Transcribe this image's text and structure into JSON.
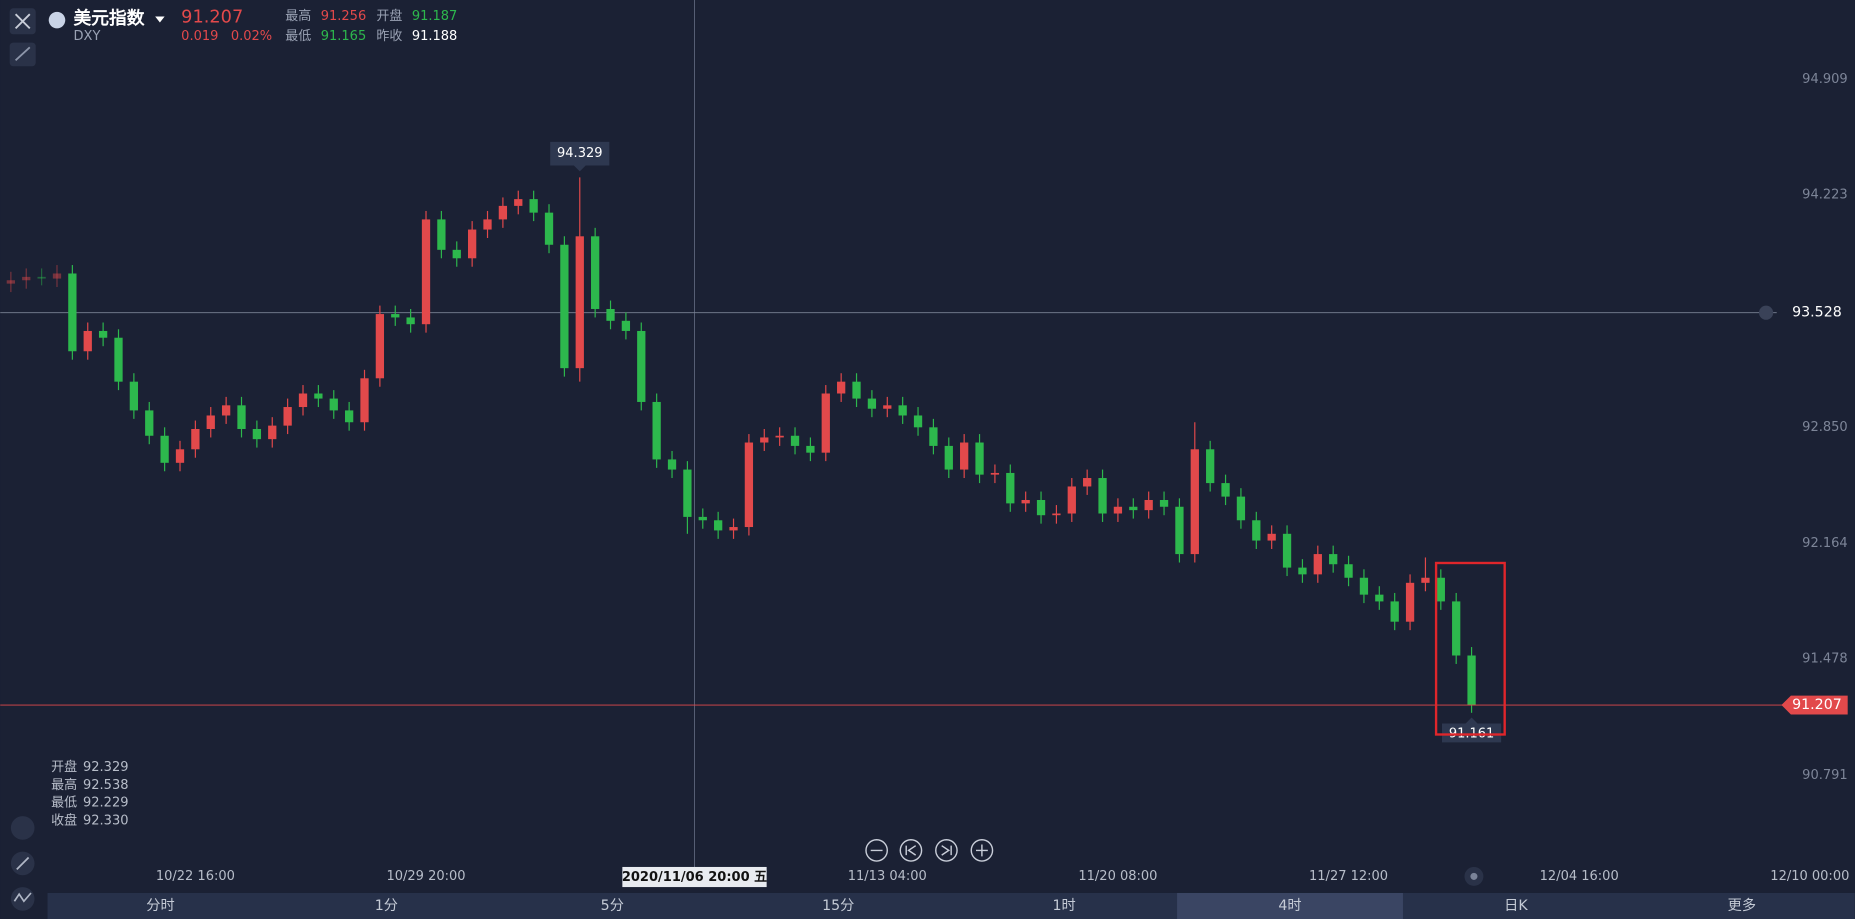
{
  "header": {
    "name": "美元指数",
    "symbol": "DXY",
    "price": "91.207",
    "change": "0.019",
    "change_pct": "0.02%",
    "stats": [
      {
        "label": "最高",
        "value": "91.256"
      },
      {
        "label": "开盘",
        "value": "91.187"
      },
      {
        "label": "最低",
        "value": "91.165"
      },
      {
        "label": "昨收",
        "value": "91.188"
      }
    ]
  },
  "ohlc_panel": [
    {
      "label": "开盘",
      "value": "92.329"
    },
    {
      "label": "最高",
      "value": "92.538"
    },
    {
      "label": "最低",
      "value": "92.229"
    },
    {
      "label": "收盘",
      "value": "92.330"
    }
  ],
  "tabs": [
    "分时",
    "1分",
    "5分",
    "15分",
    "1时",
    "4时",
    "日K",
    "更多"
  ],
  "active_tab": "4时",
  "chart_data": {
    "type": "candlestick",
    "up_color": "#e2494b",
    "down_color": "#2db84d",
    "crosshair_label": "2020/11/06 20:00 五",
    "alert_price": 93.528,
    "last_price": 91.207,
    "ylim": [
      90.27,
      95.378
    ],
    "yticks": [
      94.909,
      94.223,
      {
        "value": 92.85,
        "label": "92.850"
      },
      92.164,
      91.478,
      90.791
    ],
    "categories": [
      null,
      null,
      null,
      null,
      null,
      null,
      null,
      null,
      null,
      null,
      null,
      null,
      "10/22 16:00",
      null,
      null,
      null,
      null,
      null,
      null,
      null,
      null,
      null,
      null,
      null,
      null,
      null,
      null,
      "10/29 20:00",
      null,
      null,
      null,
      null,
      null,
      null,
      null,
      null,
      null,
      null,
      null,
      null,
      null,
      null,
      null,
      null,
      null,
      null,
      null,
      null,
      null,
      null,
      null,
      null,
      null,
      null,
      null,
      null,
      null,
      "11/13 04:00",
      null,
      null,
      null,
      null,
      null,
      null,
      null,
      null,
      null,
      null,
      null,
      null,
      null,
      null,
      "11/20 08:00",
      null,
      null,
      null,
      null,
      null,
      null,
      null,
      null,
      null,
      null,
      null,
      null,
      null,
      null,
      "11/27 12:00",
      null,
      null,
      null,
      null,
      null,
      null,
      null,
      null,
      null,
      null,
      null,
      null,
      null,
      null,
      "12/04 16:00",
      null,
      null,
      null,
      null,
      null,
      null,
      null,
      null,
      null,
      null,
      null,
      null,
      null,
      null,
      "12/10 00:00"
    ],
    "open": [
      93.7,
      93.72,
      93.74,
      93.73,
      93.76,
      93.3,
      93.42,
      93.38,
      93.12,
      92.95,
      92.8,
      92.64,
      92.72,
      92.84,
      92.92,
      92.98,
      92.84,
      92.78,
      92.86,
      92.97,
      93.05,
      93.02,
      92.95,
      92.88,
      93.14,
      93.52,
      93.5,
      93.46,
      94.08,
      93.9,
      93.85,
      94.02,
      94.08,
      94.16,
      94.2,
      94.12,
      93.93,
      93.2,
      93.98,
      93.55,
      93.48,
      93.42,
      93.0,
      92.66,
      92.6,
      92.32,
      92.3,
      92.24,
      92.26,
      92.76,
      92.79,
      92.8,
      92.74,
      92.7,
      93.05,
      93.12,
      93.02,
      92.96,
      92.98,
      92.92,
      92.85,
      92.74,
      92.6,
      92.76,
      92.57,
      92.58,
      92.4,
      92.42,
      92.33,
      92.34,
      92.5,
      92.55,
      92.34,
      92.38,
      92.36,
      92.42,
      92.38,
      92.1,
      92.72,
      92.52,
      92.44,
      92.3,
      92.18,
      92.22,
      92.02,
      91.98,
      92.1,
      92.04,
      91.96,
      91.86,
      91.82,
      91.7,
      91.93,
      91.96,
      91.82,
      91.5,
      null,
      null,
      null,
      null,
      null,
      null,
      null,
      null,
      null,
      null,
      null,
      null,
      null,
      null,
      null,
      null,
      null,
      null,
      null,
      null,
      null,
      null
    ],
    "high": [
      93.77,
      93.79,
      93.79,
      93.81,
      93.81,
      93.47,
      93.47,
      93.43,
      93.17,
      93.0,
      92.85,
      92.77,
      92.89,
      92.97,
      93.03,
      93.03,
      92.89,
      92.91,
      93.02,
      93.1,
      93.1,
      93.07,
      93.0,
      93.19,
      93.57,
      93.57,
      93.55,
      94.13,
      94.13,
      93.95,
      94.07,
      94.13,
      94.21,
      94.25,
      94.25,
      94.17,
      93.98,
      94.329,
      94.03,
      93.6,
      93.53,
      93.47,
      93.05,
      92.71,
      92.65,
      92.37,
      92.35,
      92.31,
      92.81,
      92.84,
      92.85,
      92.85,
      92.79,
      93.1,
      93.17,
      93.17,
      93.07,
      93.03,
      93.03,
      92.97,
      92.9,
      92.79,
      92.81,
      92.81,
      92.63,
      92.63,
      92.47,
      92.47,
      92.39,
      92.55,
      92.6,
      92.6,
      92.43,
      92.43,
      92.47,
      92.47,
      92.43,
      92.88,
      92.77,
      92.57,
      92.49,
      92.35,
      92.27,
      92.27,
      92.07,
      92.15,
      92.15,
      92.09,
      92.01,
      91.91,
      91.87,
      91.98,
      92.08,
      92.01,
      91.87,
      91.55,
      null,
      null,
      null,
      null,
      null,
      null,
      null,
      null,
      null,
      null,
      null,
      null,
      null,
      null,
      null,
      null,
      null,
      null,
      null,
      null,
      null,
      null
    ],
    "low": [
      93.65,
      93.67,
      93.69,
      93.68,
      93.25,
      93.25,
      93.33,
      93.07,
      92.9,
      92.75,
      92.59,
      92.59,
      92.67,
      92.79,
      92.87,
      92.79,
      92.73,
      92.73,
      92.81,
      92.92,
      92.97,
      92.9,
      92.83,
      92.83,
      93.09,
      93.45,
      93.41,
      93.41,
      93.85,
      93.8,
      93.8,
      93.97,
      94.03,
      94.11,
      94.07,
      93.88,
      93.15,
      93.12,
      93.5,
      93.43,
      93.37,
      92.95,
      92.61,
      92.55,
      92.22,
      92.25,
      92.19,
      92.19,
      92.21,
      92.71,
      92.74,
      92.69,
      92.65,
      92.65,
      93.0,
      92.97,
      92.91,
      92.91,
      92.87,
      92.8,
      92.69,
      92.55,
      92.55,
      92.52,
      92.52,
      92.35,
      92.35,
      92.28,
      92.28,
      92.29,
      92.45,
      92.29,
      92.29,
      92.31,
      92.31,
      92.33,
      92.05,
      92.05,
      92.47,
      92.39,
      92.25,
      92.13,
      92.13,
      91.97,
      91.93,
      91.93,
      91.99,
      91.91,
      91.81,
      91.77,
      91.65,
      91.65,
      91.88,
      91.77,
      91.45,
      91.161,
      null,
      null,
      null,
      null,
      null,
      null,
      null,
      null,
      null,
      null,
      null,
      null,
      null,
      null,
      null,
      null,
      null,
      null,
      null,
      null,
      null,
      null
    ],
    "close": [
      93.72,
      93.74,
      93.73,
      93.76,
      93.3,
      93.42,
      93.38,
      93.12,
      92.95,
      92.8,
      92.64,
      92.72,
      92.84,
      92.92,
      92.98,
      92.84,
      92.78,
      92.86,
      92.97,
      93.05,
      93.02,
      92.95,
      92.88,
      93.14,
      93.52,
      93.5,
      93.46,
      94.08,
      93.9,
      93.85,
      94.02,
      94.08,
      94.16,
      94.2,
      94.12,
      93.93,
      93.2,
      93.98,
      93.55,
      93.48,
      93.42,
      93.0,
      92.66,
      92.6,
      92.32,
      92.3,
      92.24,
      92.26,
      92.76,
      92.79,
      92.8,
      92.74,
      92.7,
      93.05,
      93.12,
      93.02,
      92.96,
      92.98,
      92.92,
      92.85,
      92.74,
      92.6,
      92.76,
      92.57,
      92.58,
      92.4,
      92.42,
      92.33,
      92.34,
      92.5,
      92.55,
      92.34,
      92.38,
      92.36,
      92.42,
      92.38,
      92.1,
      92.72,
      92.52,
      92.44,
      92.3,
      92.18,
      92.22,
      92.02,
      91.98,
      92.1,
      92.04,
      91.96,
      91.86,
      91.82,
      91.7,
      91.93,
      91.96,
      91.82,
      91.5,
      91.207,
      null,
      null,
      null,
      null,
      null,
      null,
      null,
      null,
      null,
      null,
      null,
      null,
      null,
      null,
      null,
      null,
      null,
      null,
      null,
      null,
      null,
      null
    ]
  }
}
